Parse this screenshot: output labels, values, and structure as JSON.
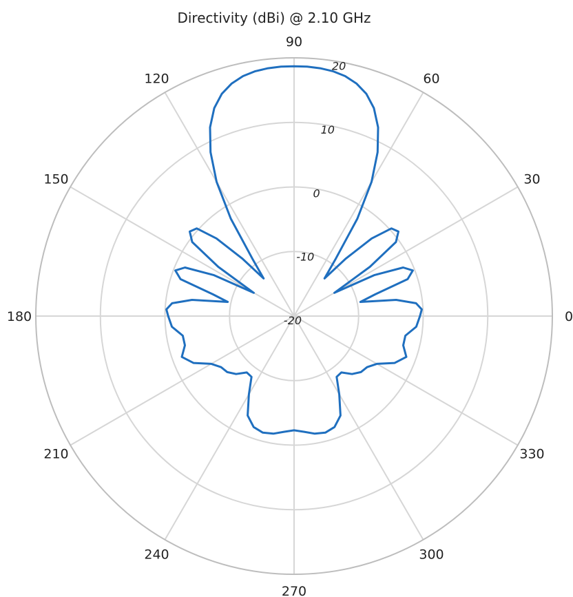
{
  "chart_data": {
    "type": "polar-line",
    "title": "Directivity (dBi) @ 2.10 GHz",
    "angle_ticks": [
      "0",
      "30",
      "60",
      "90",
      "120",
      "150",
      "180",
      "210",
      "240",
      "270",
      "300",
      "330"
    ],
    "angle_tick_values": [
      0,
      30,
      60,
      90,
      120,
      150,
      180,
      210,
      240,
      270,
      300,
      330
    ],
    "radial_ticks": [
      "-20",
      "-10",
      "0",
      "10",
      "20"
    ],
    "radial_tick_values": [
      -20,
      -10,
      0,
      10,
      20
    ],
    "rlim": [
      -20,
      20
    ],
    "radial_label_angle_deg": 80,
    "grid": true,
    "series": [
      {
        "color": "#1f6fbf",
        "angle_deg": [
          0,
          3,
          6,
          9,
          12,
          15,
          18,
          21,
          24,
          27,
          30,
          33,
          36,
          39,
          42,
          45,
          48,
          51,
          54,
          57,
          60,
          63,
          66,
          69,
          72,
          75,
          78,
          81,
          84,
          87,
          90,
          93,
          96,
          99,
          102,
          105,
          108,
          111,
          114,
          117,
          120,
          123,
          126,
          129,
          132,
          135,
          138,
          141,
          144,
          147,
          150,
          153,
          156,
          159,
          162,
          165,
          168,
          171,
          174,
          177,
          180,
          185,
          190,
          195,
          200,
          205,
          210,
          215,
          220,
          225,
          230,
          235,
          240,
          245,
          250,
          255,
          260,
          265,
          270,
          275,
          280,
          285,
          290,
          295,
          300,
          305,
          310,
          315,
          320,
          325,
          330,
          335,
          340,
          345,
          350,
          355,
          360
        ],
        "values": [
          -0.5,
          -0.2,
          -1.0,
          -4.0,
          -9.5,
          -7.0,
          -1.5,
          -0.3,
          -1.5,
          -6.0,
          -12.8,
          -6.0,
          -0.5,
          0.8,
          0.3,
          -3.0,
          -8.0,
          -12.5,
          -9.0,
          -2.0,
          4.0,
          8.5,
          12.0,
          14.5,
          16.2,
          17.3,
          18.0,
          18.4,
          18.6,
          18.7,
          18.7,
          18.7,
          18.6,
          18.4,
          18.0,
          17.3,
          16.2,
          14.5,
          12.0,
          8.5,
          4.0,
          -2.0,
          -9.0,
          -12.5,
          -8.0,
          -3.0,
          0.3,
          0.8,
          -0.5,
          -6.0,
          -12.8,
          -6.0,
          -1.5,
          -0.3,
          -1.5,
          -7.0,
          -9.5,
          -4.0,
          -1.0,
          -0.2,
          -0.5,
          -1.0,
          -2.5,
          -2.5,
          -1.5,
          -2.8,
          -5.2,
          -6.2,
          -6.5,
          -7.3,
          -8.6,
          -8.5,
          -6.0,
          -3.0,
          -1.7,
          -1.3,
          -1.5,
          -2.0,
          -2.3,
          -2.0,
          -1.5,
          -1.3,
          -1.7,
          -3.0,
          -6.0,
          -8.5,
          -8.6,
          -7.3,
          -6.5,
          -6.2,
          -5.2,
          -2.8,
          -1.5,
          -2.5,
          -2.5,
          -1.0,
          -0.5
        ]
      }
    ]
  }
}
